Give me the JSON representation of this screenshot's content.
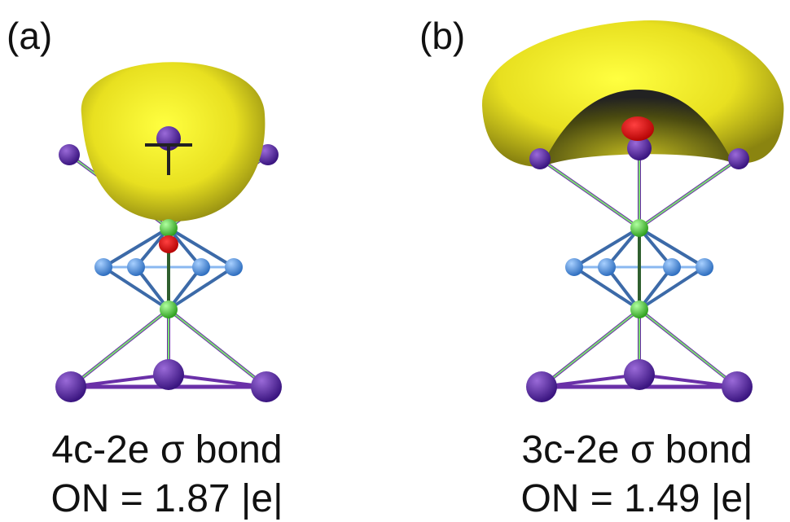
{
  "panels": [
    {
      "label": "(a)",
      "title": "4c-2e σ bond",
      "occupation": "ON = 1.87 |e|"
    },
    {
      "label": "(b)",
      "title": "3c-2e σ bond",
      "occupation": "ON = 1.49 |e|"
    }
  ]
}
